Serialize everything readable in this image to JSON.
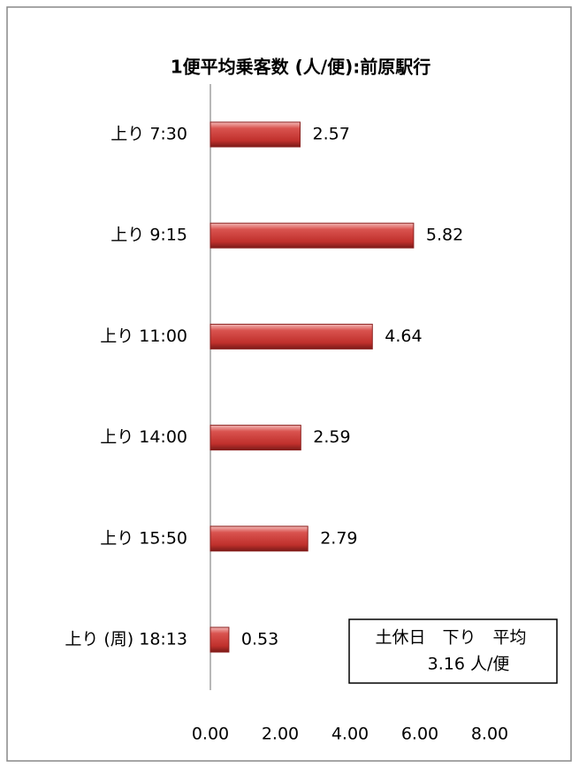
{
  "chart_data": {
    "type": "bar",
    "orientation": "horizontal",
    "title": "1便平均乗客数 (人/便):前原駅行",
    "categories": [
      "上り 7:30",
      "上り 9:15",
      "上り 11:00",
      "上り 14:00",
      "上り 15:50",
      "上り (周) 18:13"
    ],
    "values": [
      2.57,
      5.82,
      4.64,
      2.59,
      2.79,
      0.53
    ],
    "color": "#c0504d",
    "xlim": [
      0,
      8
    ],
    "xticks": [
      {
        "value": 0,
        "label": "0.00"
      },
      {
        "value": 2,
        "label": "2.00"
      },
      {
        "value": 4,
        "label": "4.00"
      },
      {
        "value": 6,
        "label": "6.00"
      },
      {
        "value": 8,
        "label": "8.00"
      }
    ],
    "grid": false,
    "annotation": [
      "土休日　下り　平均",
      "3.16 人/便"
    ]
  }
}
